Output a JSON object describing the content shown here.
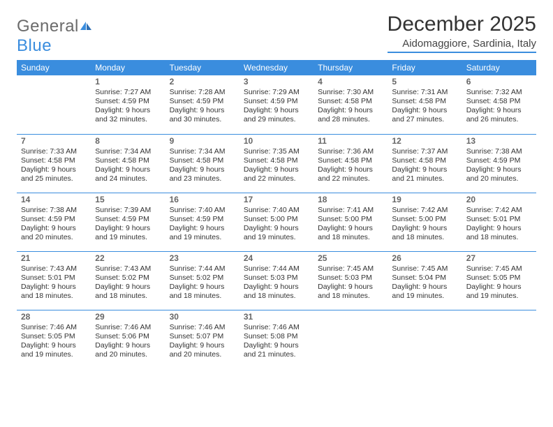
{
  "brand": {
    "name_a": "General",
    "name_b": "Blue"
  },
  "title": "December 2025",
  "location": "Aidomaggiore, Sardinia, Italy",
  "colors": {
    "accent": "#3a8dde",
    "text": "#333333",
    "logo_gray": "#6b6b6b"
  },
  "daysOfWeek": [
    "Sunday",
    "Monday",
    "Tuesday",
    "Wednesday",
    "Thursday",
    "Friday",
    "Saturday"
  ],
  "weeks": [
    [
      null,
      {
        "n": "1",
        "sr": "7:27 AM",
        "ss": "4:59 PM",
        "dl": "9 hours and 32 minutes."
      },
      {
        "n": "2",
        "sr": "7:28 AM",
        "ss": "4:59 PM",
        "dl": "9 hours and 30 minutes."
      },
      {
        "n": "3",
        "sr": "7:29 AM",
        "ss": "4:59 PM",
        "dl": "9 hours and 29 minutes."
      },
      {
        "n": "4",
        "sr": "7:30 AM",
        "ss": "4:58 PM",
        "dl": "9 hours and 28 minutes."
      },
      {
        "n": "5",
        "sr": "7:31 AM",
        "ss": "4:58 PM",
        "dl": "9 hours and 27 minutes."
      },
      {
        "n": "6",
        "sr": "7:32 AM",
        "ss": "4:58 PM",
        "dl": "9 hours and 26 minutes."
      }
    ],
    [
      {
        "n": "7",
        "sr": "7:33 AM",
        "ss": "4:58 PM",
        "dl": "9 hours and 25 minutes."
      },
      {
        "n": "8",
        "sr": "7:34 AM",
        "ss": "4:58 PM",
        "dl": "9 hours and 24 minutes."
      },
      {
        "n": "9",
        "sr": "7:34 AM",
        "ss": "4:58 PM",
        "dl": "9 hours and 23 minutes."
      },
      {
        "n": "10",
        "sr": "7:35 AM",
        "ss": "4:58 PM",
        "dl": "9 hours and 22 minutes."
      },
      {
        "n": "11",
        "sr": "7:36 AM",
        "ss": "4:58 PM",
        "dl": "9 hours and 22 minutes."
      },
      {
        "n": "12",
        "sr": "7:37 AM",
        "ss": "4:58 PM",
        "dl": "9 hours and 21 minutes."
      },
      {
        "n": "13",
        "sr": "7:38 AM",
        "ss": "4:59 PM",
        "dl": "9 hours and 20 minutes."
      }
    ],
    [
      {
        "n": "14",
        "sr": "7:38 AM",
        "ss": "4:59 PM",
        "dl": "9 hours and 20 minutes."
      },
      {
        "n": "15",
        "sr": "7:39 AM",
        "ss": "4:59 PM",
        "dl": "9 hours and 19 minutes."
      },
      {
        "n": "16",
        "sr": "7:40 AM",
        "ss": "4:59 PM",
        "dl": "9 hours and 19 minutes."
      },
      {
        "n": "17",
        "sr": "7:40 AM",
        "ss": "5:00 PM",
        "dl": "9 hours and 19 minutes."
      },
      {
        "n": "18",
        "sr": "7:41 AM",
        "ss": "5:00 PM",
        "dl": "9 hours and 18 minutes."
      },
      {
        "n": "19",
        "sr": "7:42 AM",
        "ss": "5:00 PM",
        "dl": "9 hours and 18 minutes."
      },
      {
        "n": "20",
        "sr": "7:42 AM",
        "ss": "5:01 PM",
        "dl": "9 hours and 18 minutes."
      }
    ],
    [
      {
        "n": "21",
        "sr": "7:43 AM",
        "ss": "5:01 PM",
        "dl": "9 hours and 18 minutes."
      },
      {
        "n": "22",
        "sr": "7:43 AM",
        "ss": "5:02 PM",
        "dl": "9 hours and 18 minutes."
      },
      {
        "n": "23",
        "sr": "7:44 AM",
        "ss": "5:02 PM",
        "dl": "9 hours and 18 minutes."
      },
      {
        "n": "24",
        "sr": "7:44 AM",
        "ss": "5:03 PM",
        "dl": "9 hours and 18 minutes."
      },
      {
        "n": "25",
        "sr": "7:45 AM",
        "ss": "5:03 PM",
        "dl": "9 hours and 18 minutes."
      },
      {
        "n": "26",
        "sr": "7:45 AM",
        "ss": "5:04 PM",
        "dl": "9 hours and 19 minutes."
      },
      {
        "n": "27",
        "sr": "7:45 AM",
        "ss": "5:05 PM",
        "dl": "9 hours and 19 minutes."
      }
    ],
    [
      {
        "n": "28",
        "sr": "7:46 AM",
        "ss": "5:05 PM",
        "dl": "9 hours and 19 minutes."
      },
      {
        "n": "29",
        "sr": "7:46 AM",
        "ss": "5:06 PM",
        "dl": "9 hours and 20 minutes."
      },
      {
        "n": "30",
        "sr": "7:46 AM",
        "ss": "5:07 PM",
        "dl": "9 hours and 20 minutes."
      },
      {
        "n": "31",
        "sr": "7:46 AM",
        "ss": "5:08 PM",
        "dl": "9 hours and 21 minutes."
      },
      null,
      null,
      null
    ]
  ],
  "labels": {
    "sunrise": "Sunrise:",
    "sunset": "Sunset:",
    "daylight": "Daylight:"
  }
}
